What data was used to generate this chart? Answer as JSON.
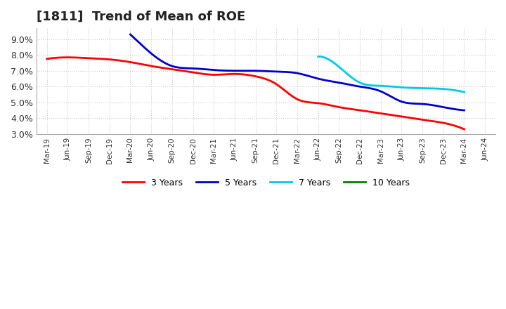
{
  "title": "[1811]  Trend of Mean of ROE",
  "title_fontsize": 13,
  "background_color": "#ffffff",
  "grid_color": "#aaaaaa",
  "ylim": [
    0.03,
    0.097
  ],
  "yticks": [
    0.03,
    0.04,
    0.05,
    0.06,
    0.07,
    0.08,
    0.09
  ],
  "x_labels": [
    "Mar-19",
    "Jun-19",
    "Sep-19",
    "Dec-19",
    "Mar-20",
    "Jun-20",
    "Sep-20",
    "Dec-20",
    "Mar-21",
    "Jun-21",
    "Sep-21",
    "Dec-21",
    "Mar-22",
    "Jun-22",
    "Sep-22",
    "Dec-22",
    "Mar-23",
    "Jun-23",
    "Sep-23",
    "Dec-23",
    "Mar-24",
    "Jun-24"
  ],
  "series_3y": {
    "color": "#ff0000",
    "x": [
      0,
      1,
      2,
      3,
      4,
      5,
      6,
      7,
      8,
      9,
      10,
      11,
      12,
      13,
      14,
      15,
      16,
      17,
      18,
      19,
      20
    ],
    "y": [
      0.0775,
      0.0785,
      0.078,
      0.0772,
      0.0755,
      0.073,
      0.071,
      0.069,
      0.0675,
      0.068,
      0.0665,
      0.0615,
      0.052,
      0.0495,
      0.047,
      0.045,
      0.043,
      0.041,
      0.039,
      0.037,
      0.033
    ]
  },
  "series_5y": {
    "color": "#0000cd",
    "x": [
      4,
      5,
      6,
      7,
      8,
      9,
      10,
      11,
      12,
      13,
      14,
      15,
      16,
      17,
      18,
      19,
      20
    ],
    "y": [
      0.093,
      0.081,
      0.073,
      0.0715,
      0.0705,
      0.07,
      0.07,
      0.0695,
      0.0685,
      0.065,
      0.0625,
      0.06,
      0.057,
      0.0505,
      0.049,
      0.047,
      0.045
    ]
  },
  "series_7y": {
    "color": "#00ccdd",
    "x": [
      13,
      14,
      15,
      16,
      17,
      18,
      19,
      20
    ],
    "y": [
      0.079,
      0.0725,
      0.0625,
      0.0605,
      0.0595,
      0.059,
      0.0585,
      0.0565
    ]
  },
  "series_10y": {
    "color": "#008000",
    "x": [],
    "y": []
  },
  "legend_labels": [
    "3 Years",
    "5 Years",
    "7 Years",
    "10 Years"
  ],
  "legend_colors": [
    "#ff0000",
    "#0000cd",
    "#00ccdd",
    "#008000"
  ]
}
